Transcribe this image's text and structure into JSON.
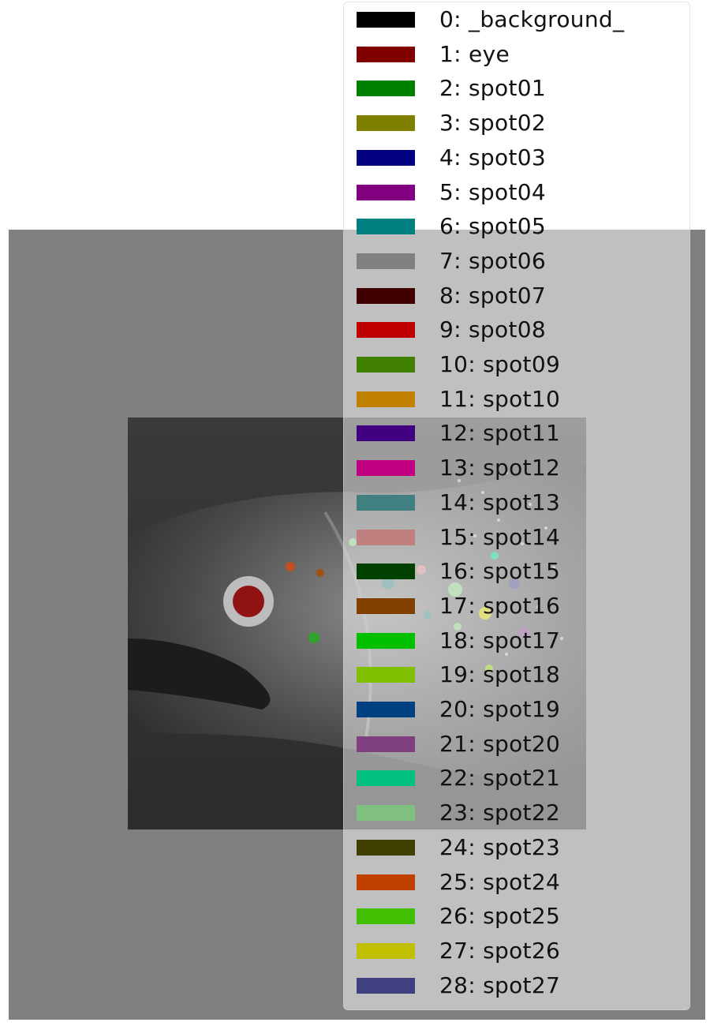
{
  "background_color": "#808080",
  "image": {
    "subject": "grayscale fish head with segmentation overlays",
    "eye_overlay_color": "#8b0000"
  },
  "legend": {
    "items": [
      {
        "label": "0: _background_",
        "color": "#000000"
      },
      {
        "label": "1: eye",
        "color": "#800000"
      },
      {
        "label": "2: spot01",
        "color": "#008000"
      },
      {
        "label": "3: spot02",
        "color": "#808000"
      },
      {
        "label": "4: spot03",
        "color": "#000080"
      },
      {
        "label": "5: spot04",
        "color": "#800080"
      },
      {
        "label": "6: spot05",
        "color": "#008080"
      },
      {
        "label": "7: spot06",
        "color": "#808080"
      },
      {
        "label": "8: spot07",
        "color": "#400000"
      },
      {
        "label": "9: spot08",
        "color": "#c00000"
      },
      {
        "label": "10: spot09",
        "color": "#408000"
      },
      {
        "label": "11: spot10",
        "color": "#c08000"
      },
      {
        "label": "12: spot11",
        "color": "#400080"
      },
      {
        "label": "13: spot12",
        "color": "#c00080"
      },
      {
        "label": "14: spot13",
        "color": "#408080"
      },
      {
        "label": "15: spot14",
        "color": "#c08080"
      },
      {
        "label": "16: spot15",
        "color": "#004000"
      },
      {
        "label": "17: spot16",
        "color": "#804000"
      },
      {
        "label": "18: spot17",
        "color": "#00c000"
      },
      {
        "label": "19: spot18",
        "color": "#80c000"
      },
      {
        "label": "20: spot19",
        "color": "#004080"
      },
      {
        "label": "21: spot20",
        "color": "#804080"
      },
      {
        "label": "22: spot21",
        "color": "#00c080"
      },
      {
        "label": "23: spot22",
        "color": "#80c080"
      },
      {
        "label": "24: spot23",
        "color": "#404000"
      },
      {
        "label": "25: spot24",
        "color": "#c04000"
      },
      {
        "label": "26: spot25",
        "color": "#40c000"
      },
      {
        "label": "27: spot26",
        "color": "#c0c000"
      },
      {
        "label": "28: spot27",
        "color": "#404080"
      }
    ]
  }
}
